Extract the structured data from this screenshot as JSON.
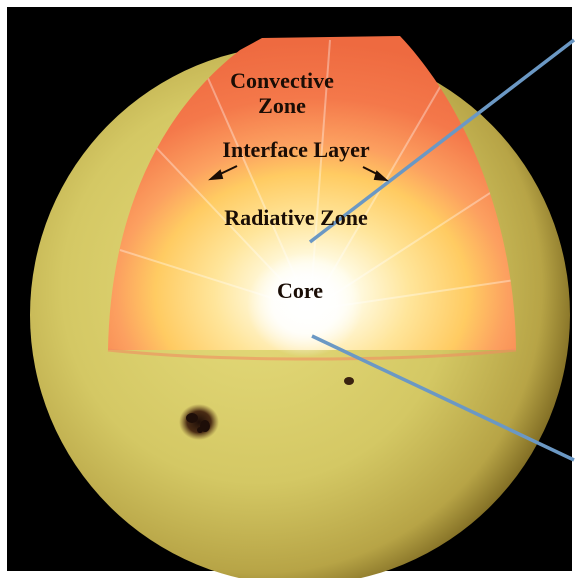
{
  "labels": {
    "convective_zone_line1": "Convective",
    "convective_zone_line2": "Zone",
    "interface_layer": "Interface Layer",
    "radiative_zone": "Radiative Zone",
    "core": "Core"
  },
  "colors": {
    "background": "#ffffff",
    "space": "#000000",
    "photosphere": "#d9cf6a",
    "photosphere_limb": "#8c7a28",
    "convective_zone": "#f27a4a",
    "radiative_zone": "#ffc95a",
    "core": "#ffffff",
    "pointer_line": "#6b98c4",
    "sunspot": "#2e1a10"
  },
  "icons": {
    "interface_left_arrow": "arrow-down-left-icon",
    "interface_right_arrow": "arrow-down-right-icon"
  }
}
